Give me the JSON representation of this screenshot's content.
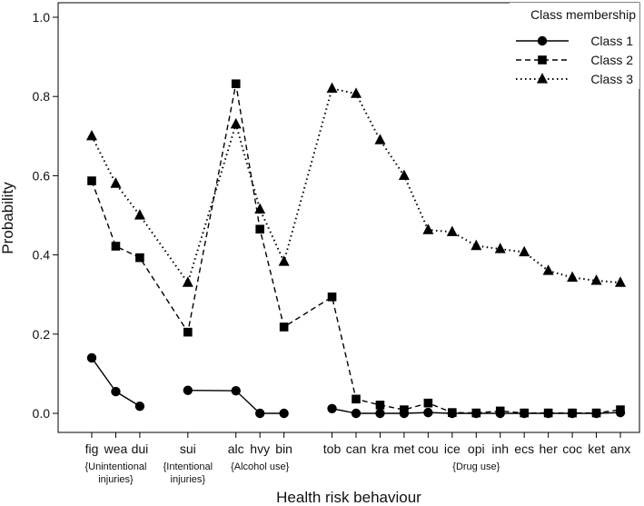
{
  "chart_data": {
    "type": "line",
    "xlabel": "Health risk behaviour",
    "ylabel": "Probability",
    "ylim": [
      0,
      1.0
    ],
    "yticks": [
      "0.0",
      "0.2",
      "0.4",
      "0.6",
      "0.8",
      "1.0"
    ],
    "grid": false,
    "legend": {
      "title": "Class membership",
      "placement": "top-right"
    },
    "categories": [
      {
        "label": "fig",
        "x": 1
      },
      {
        "label": "wea",
        "x": 2
      },
      {
        "label": "dui",
        "x": 3
      },
      {
        "label": "sui",
        "x": 5
      },
      {
        "label": "alc",
        "x": 7
      },
      {
        "label": "hvy",
        "x": 8
      },
      {
        "label": "bin",
        "x": 9
      },
      {
        "label": "tob",
        "x": 11
      },
      {
        "label": "can",
        "x": 12
      },
      {
        "label": "kra",
        "x": 13
      },
      {
        "label": "met",
        "x": 14
      },
      {
        "label": "cou",
        "x": 15
      },
      {
        "label": "ice",
        "x": 16
      },
      {
        "label": "opi",
        "x": 17
      },
      {
        "label": "inh",
        "x": 18
      },
      {
        "label": "ecs",
        "x": 19
      },
      {
        "label": "her",
        "x": 20
      },
      {
        "label": "coc",
        "x": 21
      },
      {
        "label": "ket",
        "x": 22
      },
      {
        "label": "anx",
        "x": 23
      }
    ],
    "groups": [
      {
        "lines": [
          "{Unintentional",
          "injuries}"
        ],
        "x": 2
      },
      {
        "lines": [
          "{Intentional",
          "injuries}"
        ],
        "x": 5
      },
      {
        "lines": [
          "{Alcohol use}"
        ],
        "x": 8
      },
      {
        "lines": [
          "{Drug use}"
        ],
        "x": 17
      }
    ],
    "series": [
      {
        "name": "Class 1",
        "marker": "circle",
        "dash": "solid",
        "segments": [
          [
            0.14,
            0.055,
            0.018
          ],
          [
            0.058,
            0.057,
            0.0,
            0.0
          ],
          [
            0.012,
            0.0,
            0.0,
            0.0,
            0.002,
            0.0,
            0.0,
            0.0,
            0.0,
            0.0,
            0.0,
            0.0,
            0.002
          ]
        ]
      },
      {
        "name": "Class 2",
        "marker": "square",
        "dash": "dashed",
        "segments": [
          [
            0.587,
            0.422,
            0.393,
            0.205,
            0.832,
            0.465,
            0.218,
            0.294,
            0.036,
            0.021,
            0.009,
            0.026,
            0.002,
            0.001,
            0.006,
            0.001,
            0.001,
            0.001,
            0.001,
            0.009
          ]
        ]
      },
      {
        "name": "Class 3",
        "marker": "triangle",
        "dash": "dotted",
        "segments": [
          [
            0.7,
            0.58,
            0.5,
            0.33,
            0.73,
            0.515,
            0.383,
            0.82,
            0.807,
            0.69,
            0.6,
            0.463,
            0.458,
            0.423,
            0.415,
            0.407,
            0.36,
            0.343,
            0.335,
            0.33
          ]
        ]
      }
    ]
  }
}
